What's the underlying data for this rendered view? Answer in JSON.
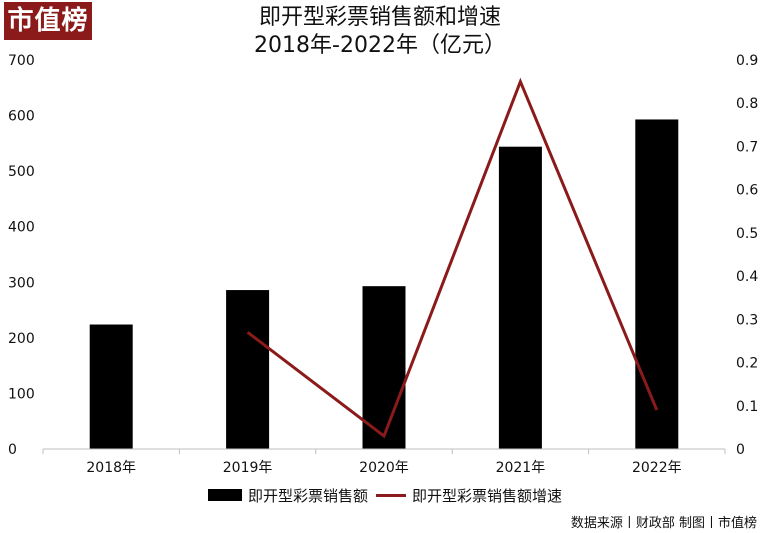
{
  "logo": {
    "text": "市值榜"
  },
  "title": {
    "line1": "即开型彩票销售额和增速",
    "line2": "2018年-2022年（亿元）"
  },
  "colors": {
    "bar": "#000000",
    "line": "#8b1a1a",
    "axis": "#bfbfbf",
    "brand": "#8b1a1a"
  },
  "chart_data": {
    "type": "bar",
    "categories": [
      "2018年",
      "2019年",
      "2020年",
      "2021年",
      "2022年"
    ],
    "series": [
      {
        "name": "即开型彩票销售额",
        "type": "bar",
        "axis": "left",
        "values": [
          224,
          286,
          293,
          544,
          593
        ]
      },
      {
        "name": "即开型彩票销售额增速",
        "type": "line",
        "axis": "right",
        "values": [
          null,
          0.27,
          0.03,
          0.85,
          0.09
        ]
      }
    ],
    "y_left": {
      "ylim": [
        0,
        700
      ],
      "ticks": [
        "0",
        "100",
        "200",
        "300",
        "400",
        "500",
        "600",
        "700"
      ]
    },
    "y_right": {
      "ylim": [
        0,
        0.9
      ],
      "ticks": [
        "0",
        "0.1",
        "0.2",
        "0.3",
        "0.4",
        "0.5",
        "0.6",
        "0.7",
        "0.8",
        "0.9"
      ]
    },
    "grid": false,
    "legend": "bottom"
  },
  "source": "数据来源丨财政部  制图丨市值榜"
}
